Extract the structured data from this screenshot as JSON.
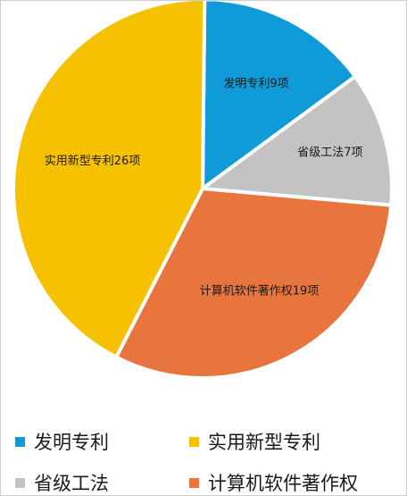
{
  "chart_data": {
    "type": "pie",
    "categories": [
      "发明专利",
      "省级工法",
      "计算机软件著作权",
      "实用新型专利"
    ],
    "values": [
      9,
      7,
      19,
      26
    ],
    "slice_labels": [
      "发明专利9项",
      "省级工法7项",
      "计算机软件著作权19项",
      "实用新型专利26项"
    ],
    "colors": [
      "#0E9BD8",
      "#C3C3C3",
      "#E8753E",
      "#F6C100"
    ],
    "legend_position": "bottom",
    "legend": [
      {
        "label": "发明专利",
        "color": "#0E9BD8"
      },
      {
        "label": "实用新型专利",
        "color": "#F6C100"
      },
      {
        "label": "省级工法",
        "color": "#C3C3C3"
      },
      {
        "label": "计算机软件著作权",
        "color": "#E8753E"
      }
    ]
  }
}
